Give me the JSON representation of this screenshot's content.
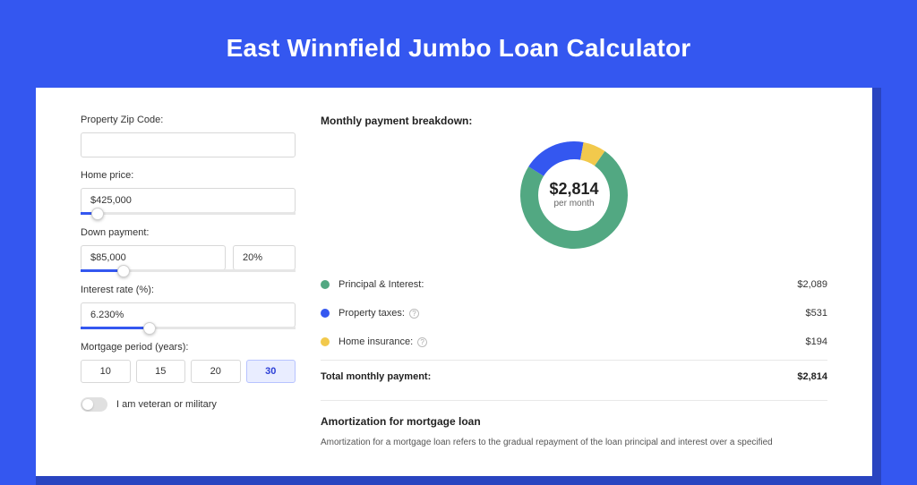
{
  "page": {
    "title": "East Winnfield Jumbo Loan Calculator",
    "bg_color": "#3457f0",
    "shadow_color": "#2944c0",
    "panel_bg": "#ffffff"
  },
  "form": {
    "zip": {
      "label": "Property Zip Code:",
      "value": ""
    },
    "home_price": {
      "label": "Home price:",
      "value": "$425,000",
      "slider_pct": 8
    },
    "down_payment": {
      "label": "Down payment:",
      "amount": "$85,000",
      "percent": "20%",
      "slider_pct": 20
    },
    "interest_rate": {
      "label": "Interest rate (%):",
      "value": "6.230%",
      "slider_pct": 32
    },
    "mortgage_period": {
      "label": "Mortgage period (years):",
      "options": [
        "10",
        "15",
        "20",
        "30"
      ],
      "selected_index": 3
    },
    "veteran": {
      "label": "I am veteran or military",
      "checked": false
    }
  },
  "breakdown": {
    "title": "Monthly payment breakdown:",
    "center_value": "$2,814",
    "center_sub": "per month",
    "donut": {
      "type": "donut",
      "size": 120,
      "thickness": 20,
      "slices": [
        {
          "label": "Principal & Interest:",
          "value": "$2,089",
          "pct": 74.2,
          "color": "#52a882"
        },
        {
          "label": "Property taxes:",
          "value": "$531",
          "pct": 18.9,
          "color": "#3457f0",
          "info": true
        },
        {
          "label": "Home insurance:",
          "value": "$194",
          "pct": 6.9,
          "color": "#f2c94c",
          "info": true
        }
      ],
      "start_angle": -55
    },
    "total_label": "Total monthly payment:",
    "total_value": "$2,814"
  },
  "amort": {
    "title": "Amortization for mortgage loan",
    "text": "Amortization for a mortgage loan refers to the gradual repayment of the loan principal and interest over a specified"
  }
}
